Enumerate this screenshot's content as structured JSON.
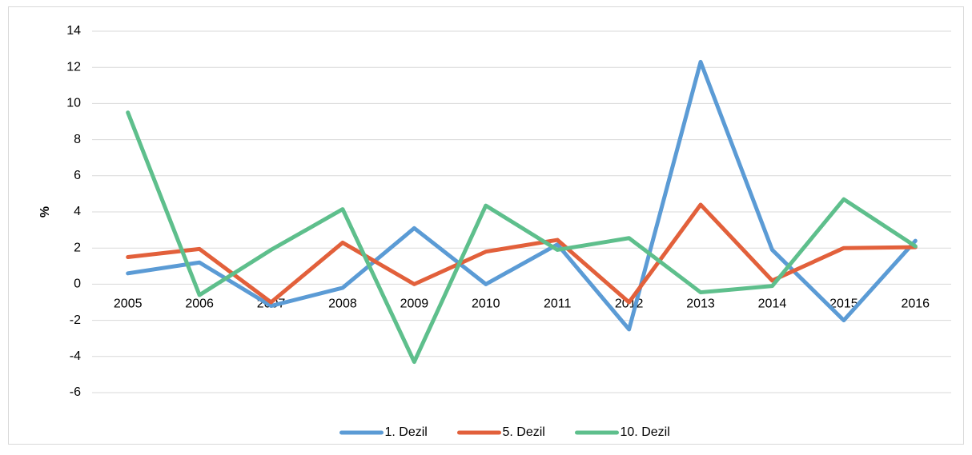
{
  "chart_data": {
    "type": "line",
    "ylabel": "%",
    "categories": [
      "2005",
      "2006",
      "2007",
      "2008",
      "2009",
      "2010",
      "2011",
      "2012",
      "2013",
      "2014",
      "2015",
      "2016"
    ],
    "series": [
      {
        "name": "1. Dezil",
        "color": "#5b9bd5",
        "values": [
          0.6,
          1.2,
          -1.2,
          -0.2,
          3.1,
          0.0,
          2.2,
          -2.5,
          12.3,
          1.9,
          -2.0,
          2.4
        ]
      },
      {
        "name": "5. Dezil",
        "color": "#e2603b",
        "values": [
          1.5,
          1.95,
          -1.0,
          2.3,
          0.0,
          1.8,
          2.45,
          -1.0,
          4.4,
          0.2,
          2.0,
          2.05
        ]
      },
      {
        "name": "10. Dezil",
        "color": "#5ebf8c",
        "values": [
          9.5,
          -0.6,
          1.9,
          4.15,
          -4.3,
          4.35,
          1.9,
          2.55,
          -0.45,
          -0.1,
          4.7,
          2.1
        ]
      }
    ],
    "ylim": [
      -6,
      14
    ],
    "yticks": [
      -6,
      -4,
      -2,
      0,
      2,
      4,
      6,
      8,
      10,
      12,
      14
    ],
    "grid": true,
    "legend": "bottom"
  }
}
